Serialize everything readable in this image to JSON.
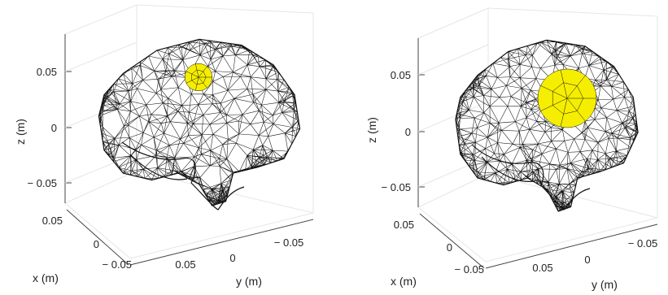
{
  "chart_data": [
    {
      "type": "3d-mesh",
      "xlabel": "x (m)",
      "ylabel": "y (m)",
      "zlabel": "z (m)",
      "z_ticks": [
        "0.05",
        "0",
        "− 0.05"
      ],
      "x_ticks": [
        "0.05",
        "0",
        "− 0.05"
      ],
      "y_ticks": [
        "0.05",
        "0",
        "− 0.05"
      ],
      "mesh_color": "#000000",
      "patch_color": "#f6ee00",
      "patch_relative_size": 0.6
    },
    {
      "type": "3d-mesh",
      "xlabel": "x (m)",
      "ylabel": "y (m)",
      "zlabel": "z (m)",
      "z_ticks": [
        "0.05",
        "0",
        "− 0.05"
      ],
      "x_ticks": [
        "0.05",
        "0",
        "− 0.05"
      ],
      "y_ticks": [
        "0.05",
        "0",
        "− 0.05"
      ],
      "mesh_color": "#000000",
      "patch_color": "#f6ee00",
      "patch_relative_size": 1.0
    }
  ]
}
